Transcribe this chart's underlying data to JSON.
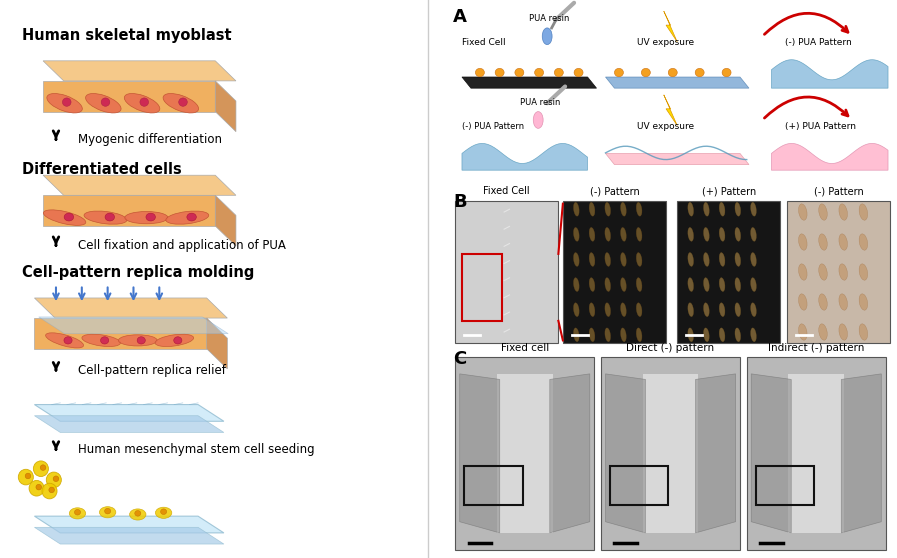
{
  "left_panel": {
    "title1": "Human skeletal myoblast",
    "arrow1_text": "Myogenic differentiation",
    "title2": "Differentiated cells",
    "arrow2_text": "Cell fixation and application of PUA",
    "title3": "Cell-pattern replica molding",
    "arrow3_text": "Cell-pattern replica relief",
    "arrow4_text": "Human mesenchymal stem cell seeding"
  },
  "right_panel_A": {
    "label": "A",
    "row1": [
      "PUA resin",
      "UV exposure",
      "(-) PUA Pattern"
    ],
    "row1_sub": [
      "Fixed Cell",
      "",
      ""
    ],
    "row2": [
      "PUA resin",
      "UV exposure",
      "(+) PUA Pattern"
    ],
    "row2_sub": [
      "(-) PUA Pattern",
      "",
      ""
    ]
  },
  "right_panel_B": {
    "label": "B",
    "titles": [
      "Fixed Cell",
      "(-) Pattern",
      "(+) Pattern",
      "(-) Pattern"
    ]
  },
  "right_panel_C": {
    "label": "C",
    "titles": [
      "Fixed cell",
      "Direct (-) pattern",
      "Indirect (-) pattern"
    ]
  },
  "colors": {
    "background": "#ffffff",
    "text_dark": "#000000",
    "cell_orange": "#f4a460",
    "cell_red": "#cd5c5c",
    "pua_blue": "#87ceeb",
    "pua_pink": "#ffb6c1",
    "arrow_red": "#cc0000",
    "uv_yellow": "#ffd700",
    "substrate_black": "#222222",
    "substrate_orange": "#f5a623",
    "light_blue": "#add8e6"
  }
}
